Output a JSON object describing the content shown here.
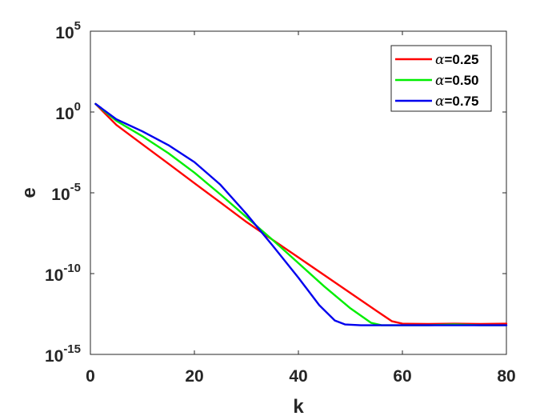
{
  "chart_data": {
    "type": "line",
    "xlabel": "k",
    "ylabel": "e",
    "xlim": [
      0,
      80
    ],
    "ylim_exponent": [
      -15,
      5
    ],
    "yscale": "log",
    "x_ticks": [
      "0",
      "20",
      "40",
      "60",
      "80"
    ],
    "y_ticks": [
      {
        "base": "10",
        "exp": "5",
        "value": 5
      },
      {
        "base": "10",
        "exp": "0",
        "value": 0
      },
      {
        "base": "10",
        "exp": "-5",
        "value": -5
      },
      {
        "base": "10",
        "exp": "-10",
        "value": -10
      },
      {
        "base": "10",
        "exp": "-15",
        "value": -15
      }
    ],
    "grid": false,
    "legend_position": "top-right",
    "series": [
      {
        "name": "α=0.25",
        "name_symbol": "α",
        "name_value": "=0.25",
        "color": "#ff0000",
        "points": [
          [
            1,
            0.5
          ],
          [
            5,
            -0.8
          ],
          [
            10,
            -2.0
          ],
          [
            15,
            -3.2
          ],
          [
            20,
            -4.4
          ],
          [
            25,
            -5.6
          ],
          [
            30,
            -6.8
          ],
          [
            35,
            -7.9
          ],
          [
            40,
            -9.0
          ],
          [
            45,
            -10.1
          ],
          [
            50,
            -11.2
          ],
          [
            55,
            -12.3
          ],
          [
            58,
            -12.95
          ],
          [
            60,
            -13.1
          ],
          [
            65,
            -13.12
          ],
          [
            70,
            -13.1
          ],
          [
            75,
            -13.12
          ],
          [
            80,
            -13.1
          ]
        ]
      },
      {
        "name": "α=0.50",
        "name_symbol": "α",
        "name_value": "=0.50",
        "color": "#00ee00",
        "points": [
          [
            1,
            0.5
          ],
          [
            5,
            -0.55
          ],
          [
            10,
            -1.5
          ],
          [
            15,
            -2.55
          ],
          [
            20,
            -3.75
          ],
          [
            25,
            -5.1
          ],
          [
            30,
            -6.5
          ],
          [
            35,
            -7.9
          ],
          [
            40,
            -9.35
          ],
          [
            45,
            -10.8
          ],
          [
            50,
            -12.15
          ],
          [
            54,
            -13.05
          ],
          [
            56,
            -13.2
          ],
          [
            60,
            -13.2
          ],
          [
            65,
            -13.2
          ],
          [
            70,
            -13.15
          ],
          [
            75,
            -13.2
          ],
          [
            80,
            -13.2
          ]
        ]
      },
      {
        "name": "α=0.75",
        "name_symbol": "α",
        "name_value": "=0.75",
        "color": "#0000ee",
        "points": [
          [
            1,
            0.5
          ],
          [
            5,
            -0.45
          ],
          [
            10,
            -1.2
          ],
          [
            15,
            -2.05
          ],
          [
            20,
            -3.1
          ],
          [
            25,
            -4.5
          ],
          [
            30,
            -6.3
          ],
          [
            35,
            -8.25
          ],
          [
            40,
            -10.25
          ],
          [
            44,
            -11.95
          ],
          [
            47,
            -12.9
          ],
          [
            49,
            -13.15
          ],
          [
            52,
            -13.2
          ],
          [
            60,
            -13.2
          ],
          [
            70,
            -13.2
          ],
          [
            80,
            -13.2
          ]
        ]
      }
    ]
  }
}
